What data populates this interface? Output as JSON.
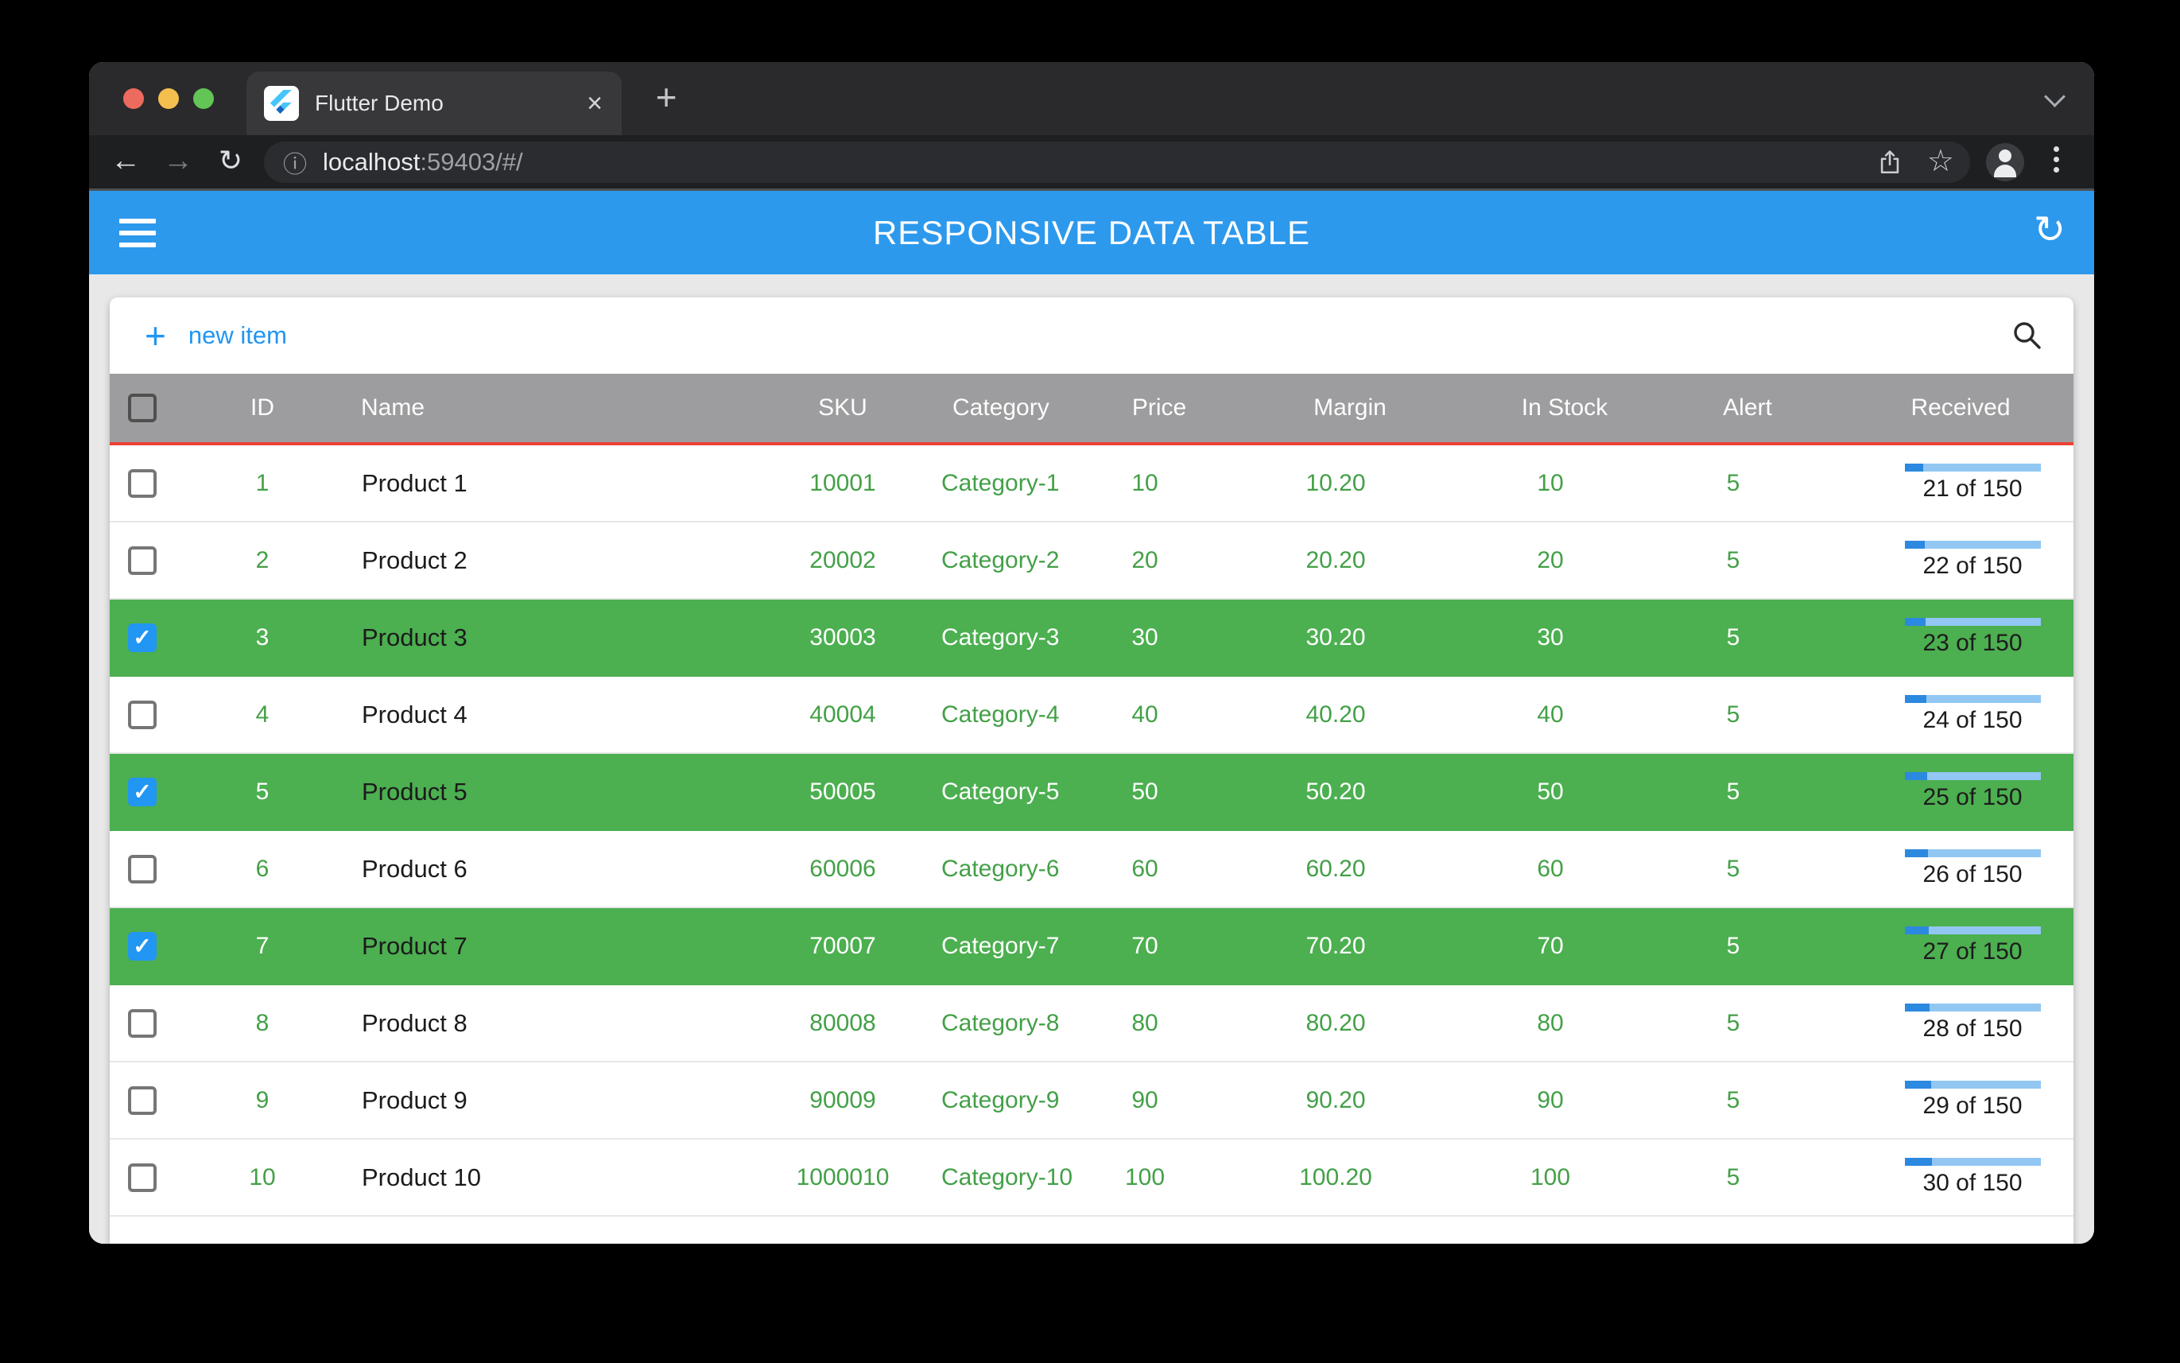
{
  "browser": {
    "tab_title": "Flutter Demo",
    "url_host": "localhost",
    "url_path": ":59403/#/"
  },
  "app_bar": {
    "title": "RESPONSIVE DATA TABLE"
  },
  "card_toolbar": {
    "new_item_label": "new item"
  },
  "table": {
    "columns": [
      "ID",
      "Name",
      "SKU",
      "Category",
      "Price",
      "Margin",
      "In Stock",
      "Alert",
      "Received"
    ],
    "received_total": 150,
    "rows": [
      {
        "id": "1",
        "name": "Product 1",
        "sku": "10001",
        "category": "Category-1",
        "price": "10",
        "margin": "10.20",
        "in_stock": "10",
        "alert": "5",
        "received": 21,
        "received_label": "21 of 150",
        "selected": false
      },
      {
        "id": "2",
        "name": "Product 2",
        "sku": "20002",
        "category": "Category-2",
        "price": "20",
        "margin": "20.20",
        "in_stock": "20",
        "alert": "5",
        "received": 22,
        "received_label": "22 of 150",
        "selected": false
      },
      {
        "id": "3",
        "name": "Product 3",
        "sku": "30003",
        "category": "Category-3",
        "price": "30",
        "margin": "30.20",
        "in_stock": "30",
        "alert": "5",
        "received": 23,
        "received_label": "23 of 150",
        "selected": true
      },
      {
        "id": "4",
        "name": "Product 4",
        "sku": "40004",
        "category": "Category-4",
        "price": "40",
        "margin": "40.20",
        "in_stock": "40",
        "alert": "5",
        "received": 24,
        "received_label": "24 of 150",
        "selected": false
      },
      {
        "id": "5",
        "name": "Product 5",
        "sku": "50005",
        "category": "Category-5",
        "price": "50",
        "margin": "50.20",
        "in_stock": "50",
        "alert": "5",
        "received": 25,
        "received_label": "25 of 150",
        "selected": true
      },
      {
        "id": "6",
        "name": "Product 6",
        "sku": "60006",
        "category": "Category-6",
        "price": "60",
        "margin": "60.20",
        "in_stock": "60",
        "alert": "5",
        "received": 26,
        "received_label": "26 of 150",
        "selected": false
      },
      {
        "id": "7",
        "name": "Product 7",
        "sku": "70007",
        "category": "Category-7",
        "price": "70",
        "margin": "70.20",
        "in_stock": "70",
        "alert": "5",
        "received": 27,
        "received_label": "27 of 150",
        "selected": true
      },
      {
        "id": "8",
        "name": "Product 8",
        "sku": "80008",
        "category": "Category-8",
        "price": "80",
        "margin": "80.20",
        "in_stock": "80",
        "alert": "5",
        "received": 28,
        "received_label": "28 of 150",
        "selected": false
      },
      {
        "id": "9",
        "name": "Product 9",
        "sku": "90009",
        "category": "Category-9",
        "price": "90",
        "margin": "90.20",
        "in_stock": "90",
        "alert": "5",
        "received": 29,
        "received_label": "29 of 150",
        "selected": false
      },
      {
        "id": "10",
        "name": "Product 10",
        "sku": "1000010",
        "category": "Category-10",
        "price": "100",
        "margin": "100.20",
        "in_stock": "100",
        "alert": "5",
        "received": 30,
        "received_label": "30 of 150",
        "selected": false
      }
    ]
  },
  "icons": {
    "back": "←",
    "forward": "→",
    "reload": "↻",
    "refresh": "↻",
    "info": "ⓘ",
    "star": "☆",
    "close_tab": "×",
    "new_tab": "+",
    "plus": "+",
    "check": "✓"
  },
  "colors": {
    "app_bar_blue": "#2D99EC",
    "accent_blue": "#2196F3",
    "selected_row_green": "#4CAF50",
    "text_green": "#43A047",
    "header_gray": "#9D9D9F",
    "header_underline_red": "#EA4335",
    "progress_fill": "#2C89E0",
    "progress_track": "#92C7F3"
  }
}
